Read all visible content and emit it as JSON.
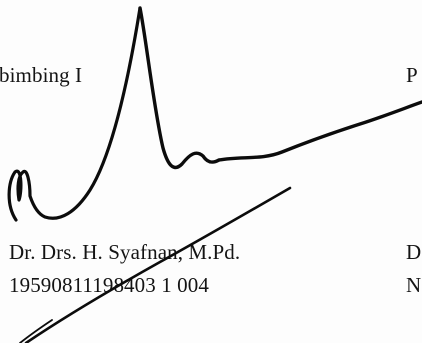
{
  "left_column": {
    "title_fragment": "bimbing I",
    "name": "Dr. Drs. H. Syafnan, M.Pd.",
    "nip": "19590811198403 1 004"
  },
  "right_column": {
    "title_fragment": "P",
    "name_fragment": "D",
    "nip_fragment": "N"
  },
  "signature": {
    "icon": "handwritten-signature",
    "ink_color": "#0c0c0c"
  }
}
